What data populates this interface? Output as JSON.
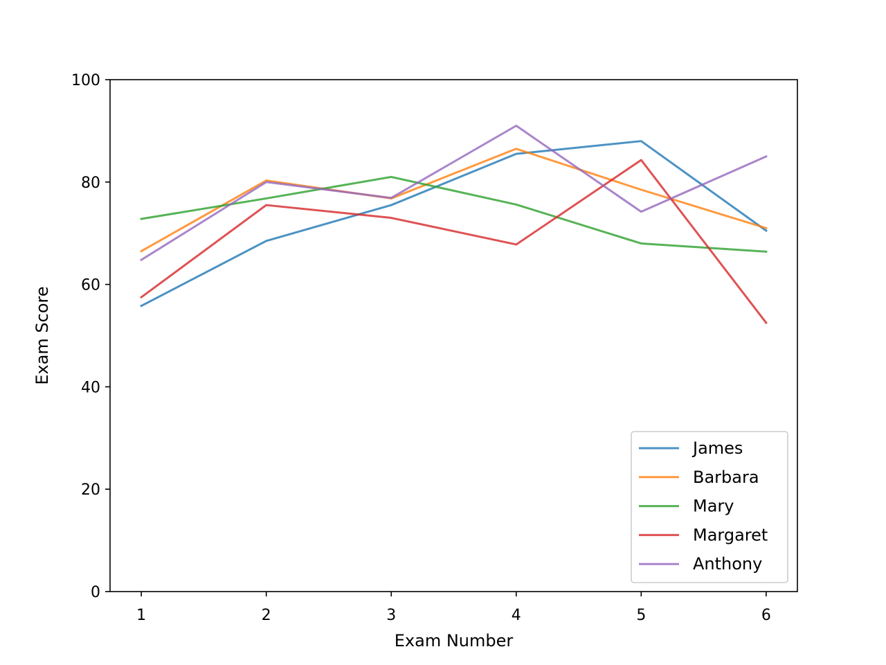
{
  "chart_data": {
    "type": "line",
    "title": "",
    "xlabel": "Exam Number",
    "ylabel": "Exam Score",
    "x": [
      1,
      2,
      3,
      4,
      5,
      6
    ],
    "xlim": [
      0.75,
      6.25
    ],
    "ylim": [
      0,
      100
    ],
    "xticks": [
      "1",
      "2",
      "3",
      "4",
      "5",
      "6"
    ],
    "yticks": [
      "0",
      "20",
      "40",
      "60",
      "80",
      "100"
    ],
    "grid": false,
    "legend_position": "lower-right",
    "series": [
      {
        "name": "James",
        "color": "#1f77b4",
        "values": [
          55.8,
          68.5,
          75.5,
          85.5,
          88.0,
          70.5
        ]
      },
      {
        "name": "Barbara",
        "color": "#ff7f0e",
        "values": [
          66.5,
          80.3,
          76.8,
          86.5,
          78.5,
          71.0
        ]
      },
      {
        "name": "Mary",
        "color": "#2ca02c",
        "values": [
          72.8,
          76.8,
          81.0,
          75.6,
          68.0,
          66.4
        ]
      },
      {
        "name": "Margaret",
        "color": "#d62728",
        "values": [
          57.5,
          75.5,
          73.0,
          67.8,
          84.3,
          52.5
        ]
      },
      {
        "name": "Anthony",
        "color": "#9467bd",
        "values": [
          64.8,
          80.0,
          76.9,
          91.0,
          74.2,
          85.0
        ]
      }
    ]
  }
}
